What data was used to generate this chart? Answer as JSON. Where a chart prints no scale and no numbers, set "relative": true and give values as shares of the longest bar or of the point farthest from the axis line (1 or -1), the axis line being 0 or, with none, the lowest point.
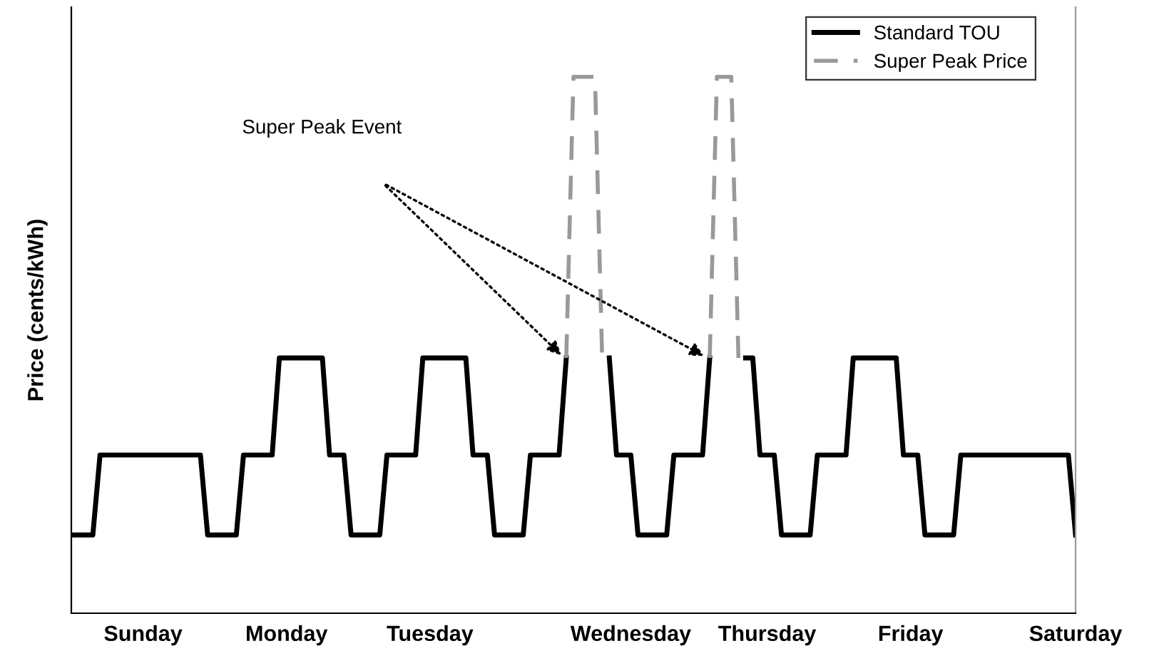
{
  "chart_data": {
    "type": "line",
    "relative": true,
    "ylabel": "Price (cents/kWh)",
    "categories": [
      null,
      null,
      null,
      null,
      null,
      null,
      null,
      null,
      null,
      null,
      "Sunday",
      null,
      null,
      null,
      null,
      null,
      null,
      null,
      null,
      null,
      null,
      null,
      null,
      null,
      null,
      null,
      null,
      null,
      null,
      null,
      "Monday",
      null,
      null,
      null,
      null,
      null,
      null,
      null,
      null,
      null,
      null,
      null,
      null,
      null,
      null,
      null,
      null,
      null,
      null,
      null,
      "Tuesday",
      null,
      null,
      null,
      null,
      null,
      null,
      null,
      null,
      null,
      null,
      null,
      null,
      null,
      null,
      null,
      null,
      null,
      null,
      null,
      null,
      null,
      null,
      null,
      null,
      null,
      null,
      null,
      "Wednesday",
      null,
      null,
      null,
      null,
      null,
      null,
      null,
      null,
      null,
      null,
      null,
      null,
      null,
      null,
      null,
      null,
      null,
      null,
      "Thursday",
      null,
      null,
      null,
      null,
      null,
      null,
      null,
      null,
      null,
      null,
      null,
      null,
      null,
      null,
      null,
      null,
      null,
      null,
      null,
      "Friday",
      null,
      null,
      null,
      null,
      null,
      null,
      null,
      null,
      null,
      null,
      null,
      null,
      null,
      null,
      null,
      null,
      null,
      null,
      null,
      null,
      null,
      null,
      "Saturday"
    ],
    "series": [
      {
        "name": "Standard TOU",
        "color": "#000000",
        "line_style": "solid",
        "values": [
          0.146,
          0.146,
          0.146,
          0.146,
          0.295,
          0.295,
          0.295,
          0.295,
          0.295,
          0.295,
          0.295,
          0.295,
          0.295,
          0.295,
          0.295,
          0.295,
          0.295,
          0.295,
          0.295,
          0.146,
          0.146,
          0.146,
          0.146,
          0.146,
          0.295,
          0.295,
          0.295,
          0.295,
          0.295,
          0.476,
          0.476,
          0.476,
          0.476,
          0.476,
          0.476,
          0.476,
          0.295,
          0.295,
          0.295,
          0.146,
          0.146,
          0.146,
          0.146,
          0.146,
          0.295,
          0.295,
          0.295,
          0.295,
          0.295,
          0.476,
          0.476,
          0.476,
          0.476,
          0.476,
          0.476,
          0.476,
          0.295,
          0.295,
          0.295,
          0.146,
          0.146,
          0.146,
          0.146,
          0.146,
          0.295,
          0.295,
          0.295,
          0.295,
          0.295,
          0.476,
          null,
          null,
          null,
          null,
          null,
          0.476,
          0.295,
          0.295,
          0.295,
          0.146,
          0.146,
          0.146,
          0.146,
          0.146,
          0.295,
          0.295,
          0.295,
          0.295,
          0.295,
          0.476,
          null,
          null,
          null,
          null,
          0.476,
          0.476,
          0.295,
          0.295,
          0.295,
          0.146,
          0.146,
          0.146,
          0.146,
          0.146,
          0.295,
          0.295,
          0.295,
          0.295,
          0.295,
          0.476,
          0.476,
          0.476,
          0.476,
          0.476,
          0.476,
          0.476,
          0.295,
          0.295,
          0.295,
          0.146,
          0.146,
          0.146,
          0.146,
          0.146,
          0.295,
          0.295,
          0.295,
          0.295,
          0.295,
          0.295,
          0.295,
          0.295,
          0.295,
          0.295,
          0.295,
          0.295,
          0.295,
          0.295,
          0.295,
          0.295,
          0.146
        ]
      },
      {
        "name": "Super Peak Price",
        "color": "#999999",
        "line_style": "dashed",
        "values": [
          null,
          null,
          null,
          null,
          null,
          null,
          null,
          null,
          null,
          null,
          null,
          null,
          null,
          null,
          null,
          null,
          null,
          null,
          null,
          null,
          null,
          null,
          null,
          null,
          null,
          null,
          null,
          null,
          null,
          null,
          null,
          null,
          null,
          null,
          null,
          null,
          null,
          null,
          null,
          null,
          null,
          null,
          null,
          null,
          null,
          null,
          null,
          null,
          null,
          null,
          null,
          null,
          null,
          null,
          null,
          null,
          null,
          null,
          null,
          null,
          null,
          null,
          null,
          null,
          null,
          null,
          null,
          null,
          null,
          0.476,
          1,
          1,
          1,
          1,
          0.476,
          null,
          null,
          null,
          null,
          null,
          null,
          null,
          null,
          null,
          null,
          null,
          null,
          null,
          null,
          0.476,
          1,
          1,
          1,
          0.476,
          null,
          null,
          null,
          null,
          null,
          null,
          null,
          null,
          null,
          null,
          null,
          null,
          null,
          null,
          null,
          null,
          null,
          null,
          null,
          null,
          null,
          null,
          null,
          null,
          null,
          null,
          null,
          null,
          null,
          null,
          null,
          null,
          null,
          null,
          null,
          null,
          null,
          null,
          null,
          null,
          null,
          null,
          null,
          null,
          null,
          null,
          null
        ]
      }
    ],
    "annotations": [
      "Super Peak Event"
    ],
    "legend": "top right",
    "grid": false,
    "marker": "none"
  }
}
